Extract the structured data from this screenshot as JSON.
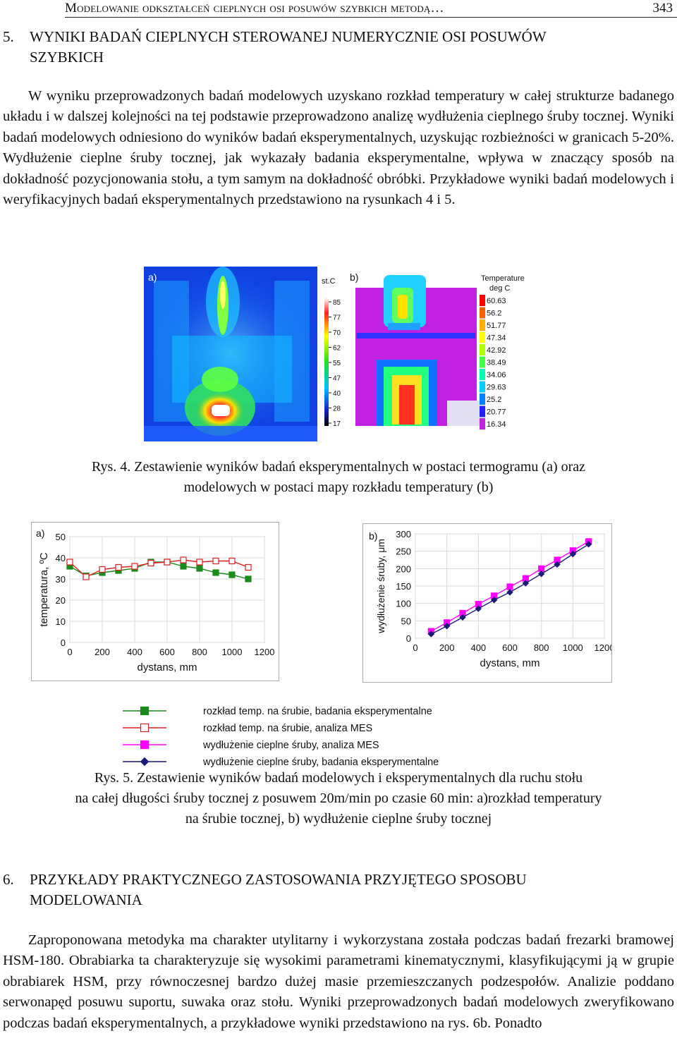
{
  "header": {
    "running_title": "Modelowanie odkształceń cieplnych osi posuwów szybkich metodą…",
    "page_number": "343"
  },
  "section5": {
    "number": "5.",
    "title_line1": "WYNIKI BADAŃ CIEPLNYCH STEROWANEJ NUMERYCZNIE OSI POSUWÓW",
    "title_line2": "SZYBKICH",
    "paragraph": "W wyniku przeprowadzonych badań modelowych uzyskano rozkład temperatury w całej strukturze badanego układu i w dalszej kolejności na tej podstawie przeprowadzono analizę wydłużenia cieplnego śruby tocznej. Wyniki badań modelowych odniesiono do wyników badań eksperymentalnych, uzyskując rozbieżności w granicach 5-20%. Wydłużenie cieplne śruby tocznej, jak wykazały badania eksperymentalne, wpływa w znaczący sposób na dokładność pozycjonowania stołu, a tym samym na dokładność obróbki. Przykładowe wyniki badań modelowych i weryfikacyjnych badań eksperymentalnych przedstawiono na rysunkach 4 i 5."
  },
  "figure4": {
    "panel_a_label": "a)",
    "panel_b_label": "b)",
    "thermo_unit": "st.C",
    "thermo_ticks": [
      "85",
      "77",
      "70",
      "62",
      "55",
      "47",
      "40",
      "28",
      "17"
    ],
    "fem_legend_title_1": "Temperature",
    "fem_legend_title_2": "deg C",
    "fem_legend_values": [
      "60.63",
      "56.2",
      "51.77",
      "47.34",
      "42.92",
      "38.49",
      "34.06",
      "29.63",
      "25.2",
      "20.77",
      "16.34"
    ],
    "caption_line1": "Rys. 4. Zestawienie wyników badań eksperymentalnych w postaci termogramu (a) oraz",
    "caption_line2": "modelowych w postaci mapy rozkładu temperatury (b)"
  },
  "chart_data": [
    {
      "type": "line",
      "panel_label": "a)",
      "xlabel": "dystans, mm",
      "ylabel": "temperatura, ºC",
      "xlim": [
        0,
        1200
      ],
      "ylim": [
        0,
        50
      ],
      "x_ticks": [
        "0",
        "200",
        "400",
        "600",
        "800",
        "1000",
        "1200"
      ],
      "y_ticks": [
        "0",
        "10",
        "20",
        "30",
        "40",
        "50"
      ],
      "x": [
        0,
        100,
        200,
        300,
        400,
        500,
        600,
        700,
        800,
        900,
        1000,
        1100
      ],
      "series": [
        {
          "name": "rozkład temp. na śrubie, badania eksperymentalne",
          "color": "#1a8a1a",
          "marker": "square-filled",
          "values": [
            36,
            31.5,
            33,
            34,
            35,
            38,
            38,
            36,
            35,
            33,
            32,
            30
          ]
        },
        {
          "name": "rozkład temp. na śrubie, analiza MES",
          "color": "#e02020",
          "marker": "square-open",
          "values": [
            38,
            31,
            34.5,
            35.5,
            36,
            37.5,
            38,
            39,
            38,
            38.5,
            38.5,
            35.5
          ]
        }
      ]
    },
    {
      "type": "line",
      "panel_label": "b)",
      "xlabel": "dystans, mm",
      "ylabel": "wydłużenie śruby, μm",
      "xlim": [
        0,
        1200
      ],
      "ylim": [
        0,
        300
      ],
      "x_ticks": [
        "0",
        "200",
        "400",
        "600",
        "800",
        "1000",
        "1200"
      ],
      "y_ticks": [
        "0",
        "50",
        "100",
        "150",
        "200",
        "250",
        "300"
      ],
      "x": [
        100,
        200,
        300,
        400,
        500,
        600,
        700,
        800,
        900,
        1000,
        1100
      ],
      "series": [
        {
          "name": "wydłużenie cieplne śruby, analiza MES",
          "color": "#ff00ff",
          "marker": "square-filled",
          "values": [
            20,
            45,
            72,
            98,
            122,
            148,
            172,
            200,
            225,
            252,
            278
          ]
        },
        {
          "name": "wydłużenie cieplne śruby, badania eksperymentalne",
          "color": "#1a1a7a",
          "marker": "diamond-filled",
          "values": [
            12,
            35,
            60,
            85,
            110,
            132,
            158,
            185,
            212,
            242,
            270
          ]
        }
      ]
    }
  ],
  "figure5": {
    "legend": [
      {
        "label": "rozkład temp. na śrubie, badania eksperymentalne",
        "color": "#1a8a1a",
        "marker": "square-filled"
      },
      {
        "label": "rozkład temp. na śrubie, analiza MES",
        "color": "#e02020",
        "marker": "square-open"
      },
      {
        "label": "wydłużenie cieplne śruby, analiza MES",
        "color": "#ff00ff",
        "marker": "square-filled"
      },
      {
        "label": "wydłużenie cieplne śruby, badania eksperymentalne",
        "color": "#1a1a7a",
        "marker": "diamond-filled"
      }
    ],
    "caption_line1": "Rys. 5. Zestawienie wyników badań modelowych i eksperymentalnych dla ruchu stołu",
    "caption_line2": "na całej długości śruby tocznej z posuwem 20m/min po czasie 60 min: a)rozkład temperatury",
    "caption_line3": "na śrubie tocznej, b) wydłużenie cieplne śruby tocznej"
  },
  "section6": {
    "number": "6.",
    "title_line1": "PRZYKŁADY PRAKTYCZNEGO ZASTOSOWANIA PRZYJĘTEGO SPOSOBU",
    "title_line2": "MODELOWANIA",
    "paragraph": "Zaproponowana metodyka ma charakter utylitarny i wykorzystana została podczas badań frezarki bramowej HSM-180. Obrabiarka ta charakteryzuje się wysokimi parametrami kinematycznymi, klasyfikującymi ją w grupie obrabiarek HSM, przy równoczesnej bardzo dużej masie przemieszczanych podzespołów. Analizie poddano serwonapęd posuwu suportu, suwaka oraz stołu. Wyniki przeprowadzonych badań modelowych zweryfikowano podczas badań eksperymentalnych, a przykładowe wyniki przedstawiono na rys. 6b. Ponadto"
  }
}
